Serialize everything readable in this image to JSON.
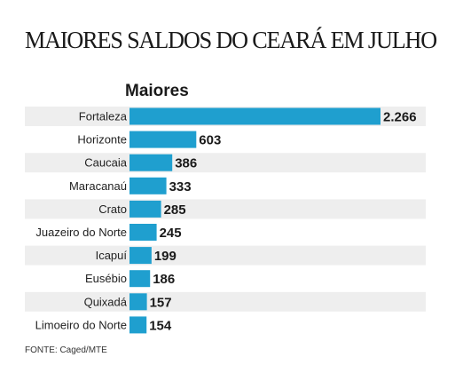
{
  "header": {
    "title": "MAIORES SALDOS DO CEARÁ EM JULHO",
    "subtitle": "Maiores"
  },
  "footer": {
    "source": "FONTE: Caged/MTE"
  },
  "colors": {
    "bar": "#1f9fcf",
    "row_stripe": "#eeeeee",
    "text": "#1a1a1a"
  },
  "chart_data": {
    "type": "bar",
    "orientation": "horizontal",
    "title": "MAIORES SALDOS DO CEARÁ EM JULHO",
    "subtitle": "Maiores",
    "categories": [
      "Fortaleza",
      "Horizonte",
      "Caucaia",
      "Maracanaú",
      "Crato",
      "Juazeiro do Norte",
      "Icapuí",
      "Eusébio",
      "Quixadá",
      "Limoeiro do Norte"
    ],
    "values": [
      2266,
      603,
      386,
      333,
      285,
      245,
      199,
      186,
      157,
      154
    ],
    "value_labels": [
      "2.266",
      "603",
      "386",
      "333",
      "285",
      "245",
      "199",
      "186",
      "157",
      "154"
    ],
    "xlabel": "",
    "ylabel": "",
    "xlim": [
      0,
      2266
    ],
    "grid": false,
    "legend": "none"
  }
}
